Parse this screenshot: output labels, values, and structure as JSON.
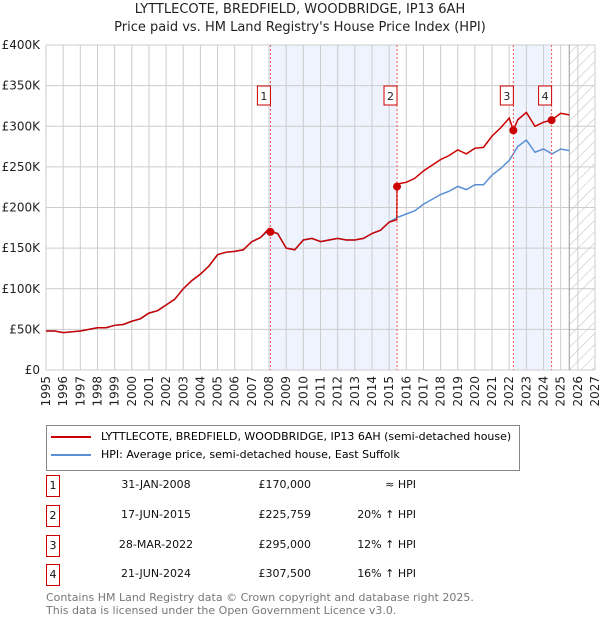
{
  "chart_data": {
    "type": "line",
    "title": "LYTTLECOTE, BREDFIELD, WOODBRIDGE, IP13 6AH",
    "subtitle": "Price paid vs. HM Land Registry's House Price Index (HPI)",
    "xlim": [
      1995,
      2027
    ],
    "ylim": [
      0,
      400000
    ],
    "x_ticks": [
      "1995",
      "1996",
      "1997",
      "1998",
      "1999",
      "2000",
      "2001",
      "2002",
      "2003",
      "2004",
      "2005",
      "2006",
      "2007",
      "2008",
      "2009",
      "2010",
      "2011",
      "2012",
      "2013",
      "2014",
      "2015",
      "2016",
      "2017",
      "2018",
      "2019",
      "2020",
      "2021",
      "2022",
      "2023",
      "2024",
      "2025",
      "2026",
      "2027"
    ],
    "y_ticks": [
      {
        "v": 0,
        "label": "£0"
      },
      {
        "v": 50000,
        "label": "£50K"
      },
      {
        "v": 100000,
        "label": "£100K"
      },
      {
        "v": 150000,
        "label": "£150K"
      },
      {
        "v": 200000,
        "label": "£200K"
      },
      {
        "v": 250000,
        "label": "£250K"
      },
      {
        "v": 300000,
        "label": "£300K"
      },
      {
        "v": 350000,
        "label": "£350K"
      },
      {
        "v": 400000,
        "label": "£400K"
      }
    ],
    "shaded_periods": [
      [
        2008.08,
        2015.46
      ],
      [
        2022.24,
        2024.47
      ]
    ],
    "forecast_from": 2025.5,
    "series": [
      {
        "name": "HPI: Average price, semi-detached house, East Suffolk",
        "color": "#5b8fd4",
        "x": [
          1995,
          1995.5,
          1996,
          1996.5,
          1997,
          1997.5,
          1998,
          1998.5,
          1999,
          1999.5,
          2000,
          2000.5,
          2001,
          2001.5,
          2002,
          2002.5,
          2003,
          2003.5,
          2004,
          2004.5,
          2005,
          2005.5,
          2006,
          2006.5,
          2007,
          2007.5,
          2008,
          2008.5,
          2009,
          2009.5,
          2010,
          2010.5,
          2011,
          2011.5,
          2012,
          2012.5,
          2013,
          2013.5,
          2014,
          2014.5,
          2015,
          2015.5,
          2016,
          2016.5,
          2017,
          2017.5,
          2018,
          2018.5,
          2019,
          2019.5,
          2020,
          2020.5,
          2021,
          2021.5,
          2022,
          2022.5,
          2023,
          2023.5,
          2024,
          2024.5,
          2025,
          2025.5
        ],
        "y": [
          48,
          48,
          46,
          47,
          48,
          50,
          52,
          52,
          55,
          56,
          60,
          63,
          70,
          73,
          80,
          87,
          100,
          110,
          118,
          128,
          142,
          145,
          146,
          148,
          158,
          163,
          172,
          168,
          150,
          148,
          160,
          162,
          158,
          160,
          162,
          160,
          160,
          162,
          168,
          172,
          182,
          188,
          192,
          196,
          204,
          210,
          216,
          220,
          226,
          222,
          228,
          228,
          240,
          248,
          258,
          275,
          283,
          268,
          272,
          266,
          272,
          270
        ]
      },
      {
        "name": "LYTTLECOTE, BREDFIELD, WOODBRIDGE, IP13 6AH (semi-detached house)",
        "color": "#cc0000",
        "x": [
          1995,
          1995.5,
          1996,
          1996.5,
          1997,
          1997.5,
          1998,
          1998.5,
          1999,
          1999.5,
          2000,
          2000.5,
          2001,
          2001.5,
          2002,
          2002.5,
          2003,
          2003.5,
          2004,
          2004.5,
          2005,
          2005.5,
          2006,
          2006.5,
          2007,
          2007.5,
          2008,
          2008.08,
          2008.5,
          2009,
          2009.5,
          2010,
          2010.5,
          2011,
          2011.5,
          2012,
          2012.5,
          2013,
          2013.5,
          2014,
          2014.5,
          2015,
          2015.45,
          2015.46,
          2015.5,
          2016,
          2016.5,
          2017,
          2017.5,
          2018,
          2018.5,
          2019,
          2019.5,
          2020,
          2020.5,
          2021,
          2021.5,
          2022,
          2022.24,
          2022.5,
          2023,
          2023.5,
          2024,
          2024.47,
          2025,
          2025.5
        ],
        "y": [
          48,
          48,
          46,
          47,
          48,
          50,
          52,
          52,
          55,
          56,
          60,
          63,
          70,
          73,
          80,
          87,
          100,
          110,
          118,
          128,
          142,
          145,
          146,
          148,
          158,
          163,
          174,
          170,
          168,
          150,
          148,
          160,
          162,
          158,
          160,
          162,
          160,
          160,
          162,
          168,
          172,
          182,
          185,
          225.8,
          229,
          231,
          236,
          245,
          252,
          259,
          264,
          271,
          266,
          273,
          274,
          288,
          298,
          310,
          295,
          308,
          317,
          300,
          305,
          307.5,
          316,
          314
        ]
      }
    ],
    "sales": [
      {
        "n": "1",
        "x": 2008.08,
        "y": 170,
        "date": "31-JAN-2008",
        "price": "£170,000",
        "rel": "≈ HPI"
      },
      {
        "n": "2",
        "x": 2015.46,
        "y": 225.759,
        "date": "17-JUN-2015",
        "price": "£225,759",
        "rel": "20% ↑ HPI"
      },
      {
        "n": "3",
        "x": 2022.24,
        "y": 295,
        "date": "28-MAR-2022",
        "price": "£295,000",
        "rel": "12% ↑ HPI"
      },
      {
        "n": "4",
        "x": 2024.47,
        "y": 307.5,
        "date": "21-JUN-2024",
        "price": "£307,500",
        "rel": "16% ↑ HPI"
      }
    ]
  },
  "footer": {
    "line1": "Contains HM Land Registry data © Crown copyright and database right 2025.",
    "line2": "This data is licensed under the Open Government Licence v3.0."
  }
}
